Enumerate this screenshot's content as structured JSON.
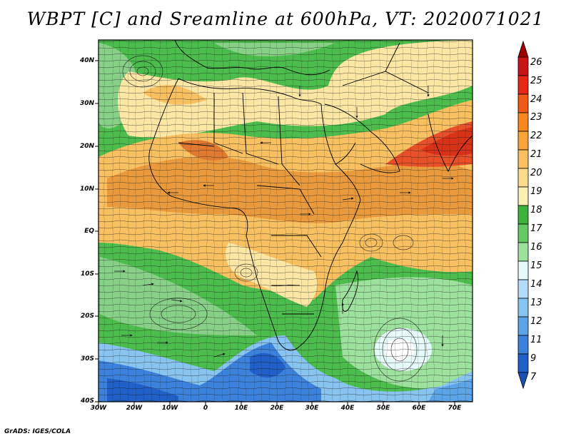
{
  "title": "WBPT [C] and Sreamline at 600hPa, VT: 2020071021",
  "credit": "GrADS: IGES/COLA",
  "map": {
    "lat_labels": [
      "40N",
      "30N",
      "20N",
      "10N",
      "EQ",
      "10S",
      "20S",
      "30S",
      "40S"
    ],
    "lon_labels": [
      "30W",
      "20W",
      "10W",
      "0",
      "10E",
      "20E",
      "30E",
      "40E",
      "50E",
      "60E",
      "70E"
    ]
  },
  "colorbar": {
    "labels": [
      "26",
      "25",
      "24",
      "23",
      "22",
      "21",
      "20",
      "19",
      "18",
      "17",
      "16",
      "15",
      "14",
      "13",
      "12",
      "11",
      "9",
      "7"
    ],
    "colors": [
      "#a00000",
      "#c81414",
      "#e62814",
      "#f05a14",
      "#f8881c",
      "#f8a438",
      "#f8c060",
      "#fbdc8c",
      "#fbf0b4",
      "#3cb43c",
      "#64c864",
      "#9ee09e",
      "#e6fafa",
      "#b4dcf8",
      "#88c4f0",
      "#5ca4e6",
      "#3c82dc",
      "#2060c8",
      "#1c50b4"
    ]
  },
  "field_colors": {
    "orange": "#e89a3c",
    "light_orange": "#f8c060",
    "yellow": "#fbe6a4",
    "green": "#3cb43c",
    "light_green": "#88d088",
    "blue": "#5a96dc",
    "dark_blue": "#2e6ad0",
    "red": "#e63c1e"
  }
}
